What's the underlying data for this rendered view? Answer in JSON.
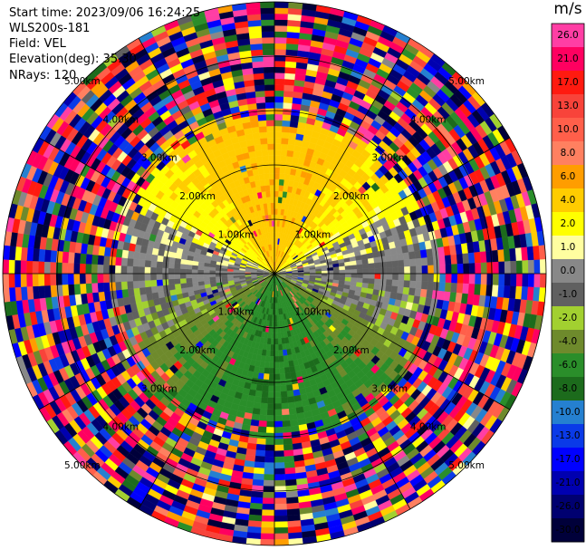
{
  "info": {
    "start_time": "Start time: 2023/09/06 16:24:25",
    "instrument": "WLS200s-181",
    "field": "Field: VEL",
    "elevation": "Elevation(deg): 35.30",
    "nrays": "NRays: 120"
  },
  "colorbar": {
    "title": "m/s",
    "bins": [
      {
        "label": "26.0",
        "color": "#ff3ea4"
      },
      {
        "label": "21.0",
        "color": "#ff0060"
      },
      {
        "label": "17.0",
        "color": "#ff1a10"
      },
      {
        "label": "13.0",
        "color": "#f8433a"
      },
      {
        "label": "10.0",
        "color": "#ff5f4a"
      },
      {
        "label": "8.0",
        "color": "#ff8060"
      },
      {
        "label": "6.0",
        "color": "#ff9d00"
      },
      {
        "label": "4.0",
        "color": "#ffcc00"
      },
      {
        "label": "2.0",
        "color": "#ffff00"
      },
      {
        "label": "1.0",
        "color": "#fffea0"
      },
      {
        "label": "0.0",
        "color": "#888888"
      },
      {
        "label": "-1.0",
        "color": "#606060"
      },
      {
        "label": "-2.0",
        "color": "#a2d030"
      },
      {
        "label": "-4.0",
        "color": "#6e8a2c"
      },
      {
        "label": "-6.0",
        "color": "#2a8e2a"
      },
      {
        "label": "-8.0",
        "color": "#1c6b1c"
      },
      {
        "label": "-10.0",
        "color": "#2580d0"
      },
      {
        "label": "-13.0",
        "color": "#0a3ae8"
      },
      {
        "label": "-17.0",
        "color": "#0000ff"
      },
      {
        "label": "-21.0",
        "color": "#0000b0"
      },
      {
        "label": "-26.0",
        "color": "#000070"
      },
      {
        "label": "-30.0",
        "color": "#00003a"
      }
    ]
  },
  "rings": [
    {
      "range_km": 1.0,
      "label": "1.00km"
    },
    {
      "range_km": 2.0,
      "label": "2.00km"
    },
    {
      "range_km": 3.0,
      "label": "3.00km"
    },
    {
      "range_km": 4.0,
      "label": "4.00km"
    },
    {
      "range_km": 5.0,
      "label": "5.00km"
    }
  ],
  "chart_data": {
    "type": "heatmap",
    "projection": "polar PPI",
    "field": "VEL",
    "units": "m/s",
    "elevation_deg": 35.3,
    "nrays": 120,
    "max_range_km": 5.0,
    "range_rings_km": [
      1,
      2,
      3,
      4,
      5
    ],
    "spokes_deg": [
      0,
      30,
      60,
      90,
      120,
      150,
      180,
      210,
      240,
      270,
      300,
      330
    ],
    "colorbar_levels": [
      26.0,
      21.0,
      17.0,
      13.0,
      10.0,
      8.0,
      6.0,
      4.0,
      2.0,
      1.0,
      0.0,
      -1.0,
      -2.0,
      -4.0,
      -6.0,
      -8.0,
      -10.0,
      -13.0,
      -17.0,
      -21.0,
      -26.0,
      -30.0
    ],
    "velocity_pattern": {
      "north_sector_mps": 4.0,
      "south_sector_mps": -6.0,
      "east_west_mps": 0.0,
      "noise_beyond_km": 2.6
    }
  }
}
